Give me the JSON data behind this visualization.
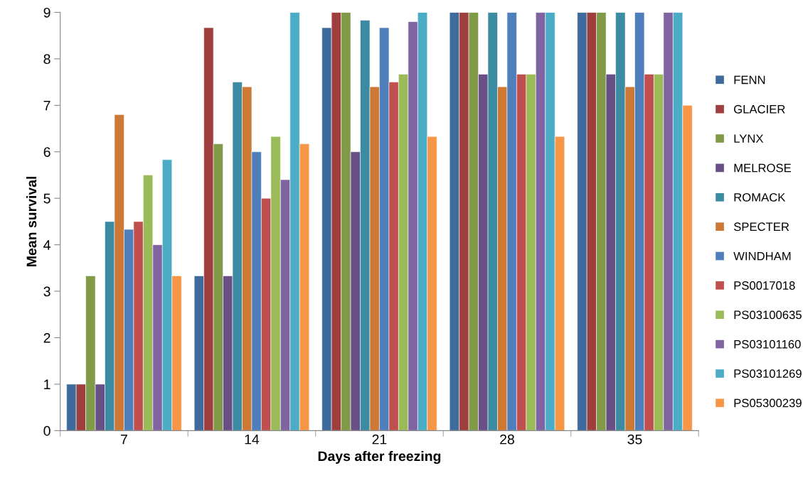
{
  "chart_data": {
    "type": "bar",
    "xlabel": "Days after freezing",
    "ylabel": "Mean survival",
    "categories": [
      "7",
      "14",
      "21",
      "28",
      "35"
    ],
    "series": [
      {
        "name": "FENN",
        "color": "#3e6a9c",
        "values": [
          1,
          3.33,
          8.67,
          9,
          9
        ]
      },
      {
        "name": "GLACIER",
        "color": "#9e3f3d",
        "values": [
          1,
          8.67,
          9,
          9,
          9
        ]
      },
      {
        "name": "LYNX",
        "color": "#809a48",
        "values": [
          3.33,
          6.17,
          9,
          9,
          9
        ]
      },
      {
        "name": "MELROSE",
        "color": "#684f86",
        "values": [
          1,
          3.33,
          6,
          7.67,
          7.67
        ]
      },
      {
        "name": "ROMACK",
        "color": "#3b8ba2",
        "values": [
          4.5,
          7.5,
          8.83,
          9,
          9
        ]
      },
      {
        "name": "SPECTER",
        "color": "#cd7935",
        "values": [
          6.8,
          7.4,
          7.4,
          7.4,
          7.4
        ]
      },
      {
        "name": "WINDHAM",
        "color": "#4e7fbc",
        "values": [
          4.33,
          6,
          8.67,
          9,
          9
        ]
      },
      {
        "name": "PS0017018",
        "color": "#c0504d",
        "values": [
          4.5,
          5,
          7.5,
          7.67,
          7.67
        ]
      },
      {
        "name": "PS03100635",
        "color": "#9bbb59",
        "values": [
          5.5,
          6.33,
          7.67,
          7.67,
          7.67
        ]
      },
      {
        "name": "PS03101160",
        "color": "#8064a2",
        "values": [
          4,
          5.4,
          8.8,
          9,
          9
        ]
      },
      {
        "name": "PS03101269",
        "color": "#4bacc6",
        "values": [
          5.83,
          9,
          9,
          9,
          9
        ]
      },
      {
        "name": "PS05300239",
        "color": "#f79646",
        "values": [
          3.33,
          6.17,
          6.33,
          6.33,
          7
        ]
      }
    ],
    "ylim": [
      0,
      9
    ],
    "yticks": [
      0,
      1,
      2,
      3,
      4,
      5,
      6,
      7,
      8,
      9
    ],
    "grid": false,
    "legend": "right"
  }
}
